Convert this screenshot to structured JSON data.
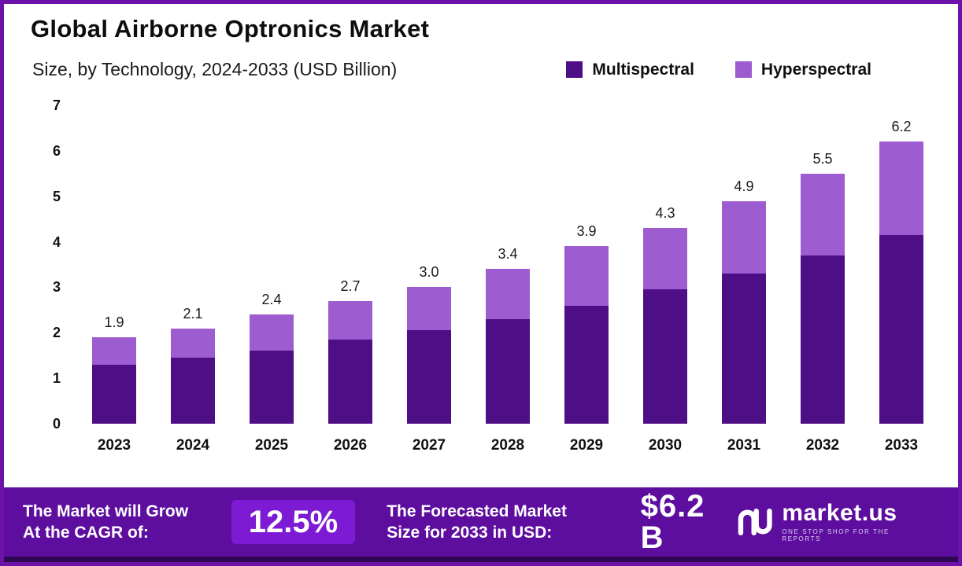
{
  "header": {
    "title": "Global Airborne Optronics Market",
    "subtitle": "Size, by Technology, 2024-2033 (USD Billion)"
  },
  "legend": [
    {
      "label": "Multispectral",
      "color": "#4D0E86"
    },
    {
      "label": "Hyperspectral",
      "color": "#9D5CD0"
    }
  ],
  "chart_data": {
    "type": "bar",
    "stacked": true,
    "title": "Global Airborne Optronics Market",
    "subtitle": "Size, by Technology, 2024-2033 (USD Billion)",
    "xlabel": "",
    "ylabel": "USD Billion",
    "ylim": [
      0,
      7
    ],
    "yticks": [
      0,
      1,
      2,
      3,
      4,
      5,
      6,
      7
    ],
    "grid": false,
    "legend_position": "top-right",
    "categories": [
      "2023",
      "2024",
      "2025",
      "2026",
      "2027",
      "2028",
      "2029",
      "2030",
      "2031",
      "2032",
      "2033"
    ],
    "series": [
      {
        "name": "Multispectral",
        "color": "#4D0E86",
        "values": [
          1.3,
          1.45,
          1.6,
          1.85,
          2.05,
          2.3,
          2.6,
          2.95,
          3.3,
          3.7,
          4.15
        ]
      },
      {
        "name": "Hyperspectral",
        "color": "#9D5CD0",
        "values": [
          0.6,
          0.65,
          0.8,
          0.85,
          0.95,
          1.1,
          1.3,
          1.35,
          1.6,
          1.8,
          2.05
        ]
      }
    ],
    "totals": [
      1.9,
      2.1,
      2.4,
      2.7,
      3.0,
      3.4,
      3.9,
      4.3,
      4.9,
      5.5,
      6.2
    ],
    "total_labels": [
      "1.9",
      "2.1",
      "2.4",
      "2.7",
      "3.0",
      "3.4",
      "3.9",
      "4.3",
      "4.9",
      "5.5",
      "6.2"
    ]
  },
  "footer": {
    "cagr_line1": "The Market will Grow",
    "cagr_line2": "At the CAGR of:",
    "cagr_value": "12.5%",
    "forecast_line1": "The Forecasted Market",
    "forecast_line2": "Size for 2033 in USD:",
    "forecast_value": "$6.2 B",
    "brand": "market.us",
    "tagline": "ONE STOP SHOP FOR THE REPORTS",
    "background": "#5E0E9E",
    "highlight": "#7D1AD4"
  }
}
